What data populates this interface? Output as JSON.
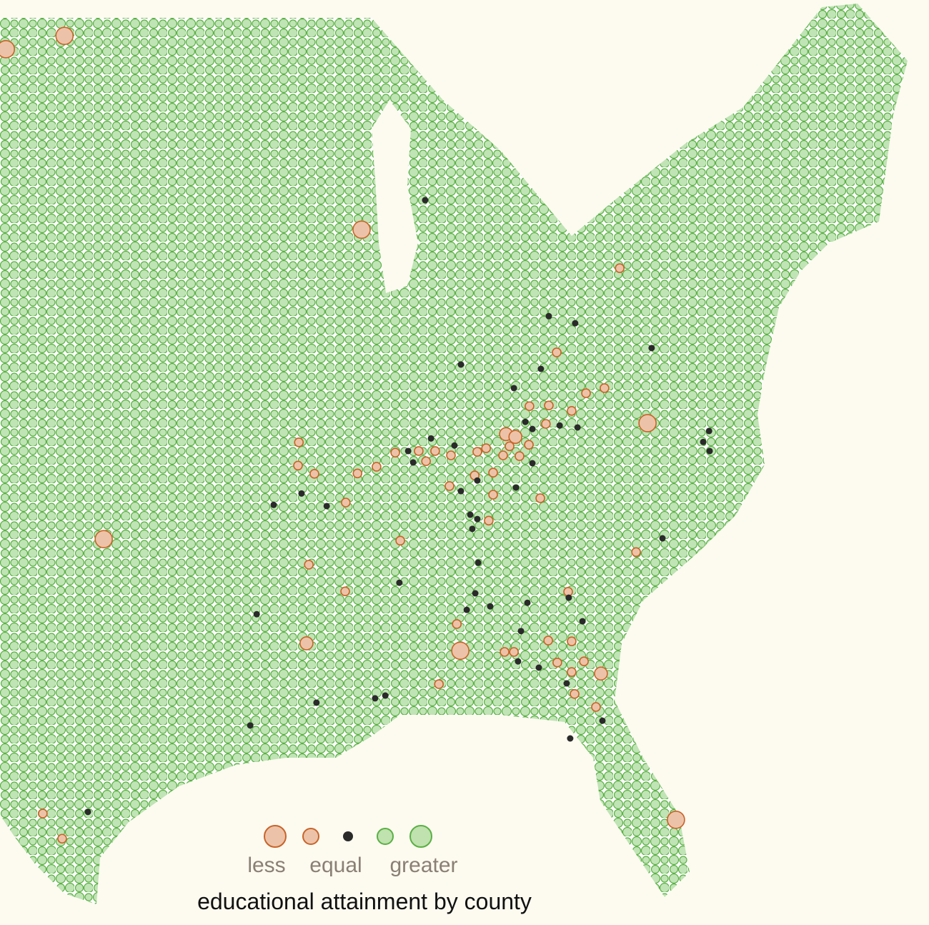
{
  "title": "educational attainment by county",
  "legend": {
    "less": "less",
    "equal": "equal",
    "greater": "greater"
  },
  "counties": {
    "less": [
      [
        -98.36,
        48.57,
        3
      ],
      [
        -100.36,
        48.23,
        3
      ],
      [
        -88.22,
        43.64,
        3
      ],
      [
        -97.02,
        35.77,
        3
      ],
      [
        -78.46,
        38.72,
        3
      ],
      [
        -90.1,
        33.12,
        2
      ],
      [
        -84.85,
        32.93,
        3
      ],
      [
        -77.49,
        28.63,
        3
      ],
      [
        -80.05,
        32.35,
        2
      ],
      [
        -79.41,
        42.66,
        1
      ],
      [
        -81.56,
        40.52,
        1
      ],
      [
        -80.56,
        39.48,
        1
      ],
      [
        -79.93,
        39.61,
        1
      ],
      [
        -82.49,
        39.15,
        1
      ],
      [
        -81.83,
        39.17,
        1
      ],
      [
        -81.05,
        39.03,
        1
      ],
      [
        -81.93,
        38.7,
        1
      ],
      [
        -83.29,
        38.44,
        2
      ],
      [
        -82.97,
        38.37,
        2
      ],
      [
        -82.51,
        38.17,
        1
      ],
      [
        -83.17,
        38.13,
        1
      ],
      [
        -83.39,
        37.9,
        1
      ],
      [
        -82.83,
        37.88,
        1
      ],
      [
        -83.97,
        38.08,
        1
      ],
      [
        -84.27,
        37.99,
        1
      ],
      [
        -85.17,
        37.9,
        1
      ],
      [
        -85.71,
        38.01,
        1
      ],
      [
        -86.27,
        38.01,
        1
      ],
      [
        -86.02,
        37.75,
        1
      ],
      [
        -87.07,
        37.97,
        1
      ],
      [
        -90.36,
        38.23,
        1
      ],
      [
        -90.39,
        37.64,
        1
      ],
      [
        -89.83,
        37.43,
        1
      ],
      [
        -88.36,
        37.44,
        1
      ],
      [
        -87.71,
        37.61,
        1
      ],
      [
        -88.76,
        36.7,
        1
      ],
      [
        -85.22,
        37.12,
        1
      ],
      [
        -83.73,
        36.9,
        1
      ],
      [
        -83.73,
        37.46,
        1
      ],
      [
        -84.36,
        37.39,
        1
      ],
      [
        -83.88,
        36.24,
        1
      ],
      [
        -82.12,
        36.81,
        1
      ],
      [
        -86.9,
        35.73,
        1
      ],
      [
        -90.02,
        35.12,
        1
      ],
      [
        -88.78,
        34.44,
        1
      ],
      [
        -84.97,
        33.61,
        1
      ],
      [
        -81.17,
        34.43,
        1
      ],
      [
        -81.85,
        33.19,
        1
      ],
      [
        -81.05,
        33.17,
        1
      ],
      [
        -83.34,
        32.9,
        1
      ],
      [
        -83.02,
        32.9,
        1
      ],
      [
        -81.54,
        32.63,
        1
      ],
      [
        -81.05,
        32.39,
        1
      ],
      [
        -80.63,
        32.66,
        1
      ],
      [
        -85.58,
        32.08,
        1
      ],
      [
        -80.95,
        31.83,
        1
      ],
      [
        -80.22,
        31.5,
        1
      ],
      [
        -78.85,
        35.44,
        1
      ],
      [
        -98.44,
        28.15,
        1
      ],
      [
        -99.1,
        28.79,
        1
      ]
    ],
    "equal": [
      [
        -86.05,
        44.39
      ],
      [
        -81.83,
        41.44
      ],
      [
        -80.93,
        41.26
      ],
      [
        -78.32,
        40.63
      ],
      [
        -84.83,
        40.21
      ],
      [
        -82.1,
        40.1
      ],
      [
        -83.02,
        39.61
      ],
      [
        -82.63,
        38.75
      ],
      [
        -82.39,
        38.57
      ],
      [
        -81.46,
        38.66
      ],
      [
        -80.85,
        38.61
      ],
      [
        -85.85,
        38.33
      ],
      [
        -86.63,
        38.01
      ],
      [
        -86.46,
        37.72
      ],
      [
        -85.05,
        38.15
      ],
      [
        -84.83,
        36.99
      ],
      [
        -84.27,
        37.26
      ],
      [
        -90.27,
        36.93
      ],
      [
        -91.22,
        36.64
      ],
      [
        -89.41,
        36.61
      ],
      [
        -82.95,
        37.08
      ],
      [
        -84.51,
        36.39
      ],
      [
        -84.27,
        36.28
      ],
      [
        -84.44,
        36.03
      ],
      [
        -84.24,
        35.17
      ],
      [
        -86.93,
        34.66
      ],
      [
        -84.34,
        34.39
      ],
      [
        -84.63,
        33.97
      ],
      [
        -83.83,
        34.06
      ],
      [
        -82.56,
        34.15
      ],
      [
        -81.15,
        34.28
      ],
      [
        -80.68,
        33.68
      ],
      [
        -82.78,
        33.43
      ],
      [
        -91.8,
        33.86
      ],
      [
        -89.76,
        31.61
      ],
      [
        -87.76,
        31.72
      ],
      [
        -87.41,
        31.79
      ],
      [
        -92.02,
        31.03
      ],
      [
        -81.1,
        30.7
      ],
      [
        -80.0,
        31.15
      ],
      [
        -82.88,
        32.66
      ],
      [
        -82.17,
        32.5
      ],
      [
        -81.22,
        32.1
      ],
      [
        -76.36,
        38.52
      ],
      [
        -76.56,
        38.24
      ],
      [
        -76.34,
        38.01
      ],
      [
        -77.95,
        35.79
      ],
      [
        -97.56,
        28.83
      ],
      [
        -82.39,
        37.7
      ]
    ]
  }
}
